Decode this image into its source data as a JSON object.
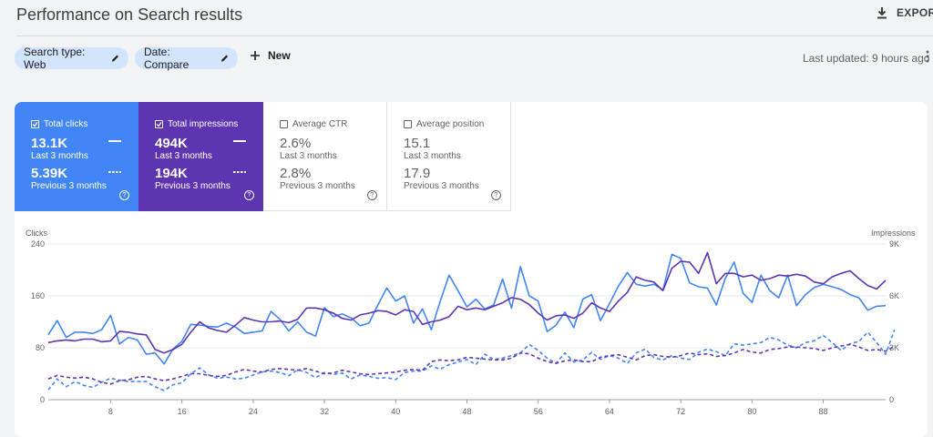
{
  "header": {
    "title": "Performance on Search results",
    "export_label": "EXPORT"
  },
  "filters": {
    "search_type": "Search type: Web",
    "date": "Date: Compare",
    "new_label": "New",
    "last_updated": "Last updated: 9 hours ago"
  },
  "metrics": [
    {
      "label": "Total clicks",
      "checked": true,
      "current": "13.1K",
      "current_period": "Last 3 months",
      "previous": "5.39K",
      "previous_period": "Previous 3 months",
      "color": "#4285f4"
    },
    {
      "label": "Total impressions",
      "checked": true,
      "current": "494K",
      "current_period": "Last 3 months",
      "previous": "194K",
      "previous_period": "Previous 3 months",
      "color": "#5e35b1"
    },
    {
      "label": "Average CTR",
      "checked": false,
      "current": "2.6%",
      "current_period": "Last 3 months",
      "previous": "2.8%",
      "previous_period": "Previous 3 months"
    },
    {
      "label": "Average position",
      "checked": false,
      "current": "15.1",
      "current_period": "Last 3 months",
      "previous": "17.9",
      "previous_period": "Previous 3 months"
    }
  ],
  "chart_data": {
    "type": "line",
    "ylabel_left": "Clicks",
    "ylabel_right": "Impressions",
    "ylim_left": [
      0,
      240
    ],
    "ylim_right": [
      0,
      9000
    ],
    "yticks_left": [
      "0",
      "80",
      "160",
      "240"
    ],
    "yticks_right": [
      "0",
      "3K",
      "6K",
      "9K"
    ],
    "xticks": [
      8,
      16,
      24,
      32,
      40,
      48,
      56,
      64,
      72,
      80,
      88
    ],
    "grid": true,
    "series": [
      {
        "metric": "clicks",
        "period": "current",
        "axis": "left",
        "style": "solid",
        "color": "#4285f4",
        "values": [
          100,
          122,
          96,
          104,
          104,
          102,
          108,
          130,
          86,
          96,
          92,
          70,
          72,
          55,
          78,
          90,
          116,
          115,
          113,
          112,
          118,
          112,
          102,
          104,
          106,
          136,
          124,
          106,
          120,
          104,
          98,
          142,
          128,
          132,
          126,
          114,
          118,
          146,
          172,
          152,
          160,
          118,
          140,
          108,
          152,
          192,
          168,
          143,
          155,
          140,
          146,
          186,
          141,
          205,
          160,
          152,
          105,
          115,
          135,
          111,
          155,
          162,
          122,
          148,
          175,
          196,
          178,
          175,
          178,
          169,
          224,
          218,
          180,
          174,
          172,
          146,
          187,
          212,
          164,
          150,
          192,
          168,
          157,
          192,
          145,
          162,
          173,
          178,
          174,
          170,
          162,
          157,
          138,
          144,
          145
        ]
      },
      {
        "metric": "impressions",
        "period": "current",
        "axis": "right",
        "style": "solid",
        "color": "#5e35b1",
        "values": [
          3300,
          3400,
          3450,
          3400,
          3500,
          3500,
          3350,
          3400,
          3950,
          3900,
          3800,
          3750,
          2900,
          2700,
          2900,
          3200,
          3900,
          4500,
          4150,
          4000,
          3900,
          4300,
          4750,
          4600,
          4500,
          4500,
          4550,
          4450,
          4650,
          5300,
          5300,
          5200,
          5000,
          4700,
          4600,
          4900,
          5000,
          5150,
          5100,
          4900,
          5200,
          5100,
          4350,
          4500,
          4600,
          4800,
          5400,
          5200,
          5300,
          5200,
          5400,
          5600,
          5900,
          5800,
          5500,
          5000,
          4600,
          4850,
          4900,
          4700,
          5000,
          5600,
          5300,
          5100,
          5700,
          6200,
          7100,
          6900,
          6800,
          6300,
          7600,
          8000,
          7950,
          7300,
          8500,
          6700,
          7300,
          7300,
          7100,
          7200,
          6900,
          7000,
          7200,
          7150,
          7250,
          7150,
          6800,
          6700,
          7100,
          7300,
          7450,
          7000,
          6600,
          6400,
          6900
        ]
      },
      {
        "metric": "clicks",
        "period": "previous",
        "axis": "left",
        "style": "dashed",
        "color": "#4285f4",
        "values": [
          15,
          32,
          20,
          28,
          22,
          19,
          27,
          33,
          30,
          28,
          28,
          28,
          20,
          14,
          23,
          26,
          40,
          49,
          38,
          33,
          35,
          32,
          33,
          38,
          43,
          44,
          42,
          37,
          46,
          42,
          34,
          42,
          39,
          41,
          32,
          38,
          36,
          33,
          34,
          31,
          42,
          44,
          44,
          52,
          47,
          54,
          58,
          62,
          54,
          70,
          62,
          64,
          68,
          72,
          85,
          76,
          64,
          56,
          72,
          58,
          61,
          73,
          62,
          68,
          64,
          56,
          72,
          78,
          65,
          61,
          68,
          64,
          62,
          73,
          78,
          74,
          68,
          86,
          84,
          86,
          88,
          96,
          92,
          84,
          80,
          88,
          91,
          99,
          88,
          76,
          86,
          90,
          104,
          88,
          70,
          108
        ]
      },
      {
        "metric": "impressions",
        "period": "previous",
        "axis": "right",
        "style": "dashed",
        "color": "#5e35b1",
        "values": [
          1200,
          1400,
          1300,
          1250,
          1300,
          1200,
          1000,
          900,
          1100,
          1150,
          1300,
          1350,
          1200,
          1100,
          1200,
          1350,
          1500,
          1500,
          1400,
          1350,
          1400,
          1600,
          1750,
          1650,
          1600,
          1750,
          1800,
          1750,
          1700,
          1800,
          1650,
          1500,
          1550,
          1700,
          1600,
          1500,
          1450,
          1500,
          1550,
          1600,
          1700,
          1750,
          1700,
          2200,
          2300,
          2250,
          2300,
          2450,
          2400,
          2350,
          2300,
          2300,
          2400,
          2700,
          2650,
          2400,
          2200,
          2100,
          2250,
          2300,
          2200,
          2200,
          2450,
          2550,
          2600,
          2450,
          2300,
          2550,
          2600,
          2500,
          2450,
          2550,
          2700,
          2600,
          2650,
          2500,
          2550,
          2700,
          2900,
          2750,
          2700,
          2900,
          2950,
          3050,
          3050,
          3000,
          2950,
          2850,
          3000,
          3100,
          3200,
          3050,
          2850,
          2900,
          2800,
          3100
        ]
      }
    ]
  }
}
